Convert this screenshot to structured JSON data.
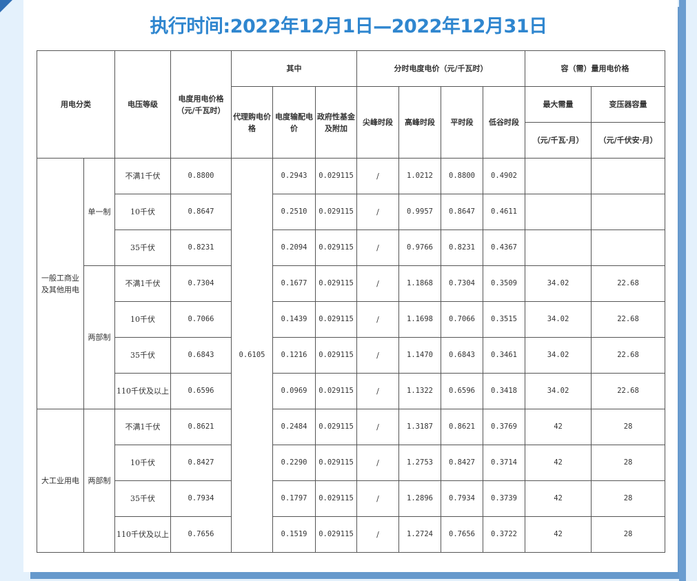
{
  "title": "执行时间:2022年12月1日—2022年12月31日",
  "headers": {
    "category": "用电分类",
    "voltage": "电压等级",
    "price": "电度用电价格\n（元/千瓦时）",
    "of_which": "其中",
    "agent_price": "代理购电价格",
    "transmission": "电度输配电价",
    "gov_fund": "政府性基金及附加",
    "tou": "分时电度电价（元/千瓦时）",
    "sharp_peak": "尖峰时段",
    "peak": "高峰时段",
    "flat": "平时段",
    "valley": "低谷时段",
    "capacity": "容（需）量用电价格",
    "max_demand": "最大需量",
    "max_demand_unit": "（元/千瓦·月）",
    "transformer": "变压器容量",
    "transformer_unit": "（元/千伏安·月）"
  },
  "agent_price": "0.6105",
  "groups": [
    {
      "category": "一般工商业及其他用电",
      "subgroups": [
        {
          "system": "单一制",
          "rows": [
            {
              "voltage": "不满1千伏",
              "price": "0.8800",
              "transmission": "0.2943",
              "gov_fund": "0.029115",
              "sharp_peak": "/",
              "peak": "1.0212",
              "flat": "0.8800",
              "valley": "0.4902",
              "max_demand": "",
              "transformer": ""
            },
            {
              "voltage": "10千伏",
              "price": "0.8647",
              "transmission": "0.2510",
              "gov_fund": "0.029115",
              "sharp_peak": "/",
              "peak": "0.9957",
              "flat": "0.8647",
              "valley": "0.4611",
              "max_demand": "",
              "transformer": ""
            },
            {
              "voltage": "35千伏",
              "price": "0.8231",
              "transmission": "0.2094",
              "gov_fund": "0.029115",
              "sharp_peak": "/",
              "peak": "0.9766",
              "flat": "0.8231",
              "valley": "0.4367",
              "max_demand": "",
              "transformer": ""
            }
          ]
        },
        {
          "system": "两部制",
          "rows": [
            {
              "voltage": "不满1千伏",
              "price": "0.7304",
              "transmission": "0.1677",
              "gov_fund": "0.029115",
              "sharp_peak": "/",
              "peak": "1.1868",
              "flat": "0.7304",
              "valley": "0.3509",
              "max_demand": "34.02",
              "transformer": "22.68"
            },
            {
              "voltage": "10千伏",
              "price": "0.7066",
              "transmission": "0.1439",
              "gov_fund": "0.029115",
              "sharp_peak": "/",
              "peak": "1.1698",
              "flat": "0.7066",
              "valley": "0.3515",
              "max_demand": "34.02",
              "transformer": "22.68"
            },
            {
              "voltage": "35千伏",
              "price": "0.6843",
              "transmission": "0.1216",
              "gov_fund": "0.029115",
              "sharp_peak": "/",
              "peak": "1.1470",
              "flat": "0.6843",
              "valley": "0.3461",
              "max_demand": "34.02",
              "transformer": "22.68"
            },
            {
              "voltage": "110千伏及以上",
              "price": "0.6596",
              "transmission": "0.0969",
              "gov_fund": "0.029115",
              "sharp_peak": "/",
              "peak": "1.1322",
              "flat": "0.6596",
              "valley": "0.3418",
              "max_demand": "34.02",
              "transformer": "22.68"
            }
          ]
        }
      ]
    },
    {
      "category": "大工业用电",
      "subgroups": [
        {
          "system": "两部制",
          "rows": [
            {
              "voltage": "不满1千伏",
              "price": "0.8621",
              "transmission": "0.2484",
              "gov_fund": "0.029115",
              "sharp_peak": "/",
              "peak": "1.3187",
              "flat": "0.8621",
              "valley": "0.3769",
              "max_demand": "42",
              "transformer": "28"
            },
            {
              "voltage": "10千伏",
              "price": "0.8427",
              "transmission": "0.2290",
              "gov_fund": "0.029115",
              "sharp_peak": "/",
              "peak": "1.2753",
              "flat": "0.8427",
              "valley": "0.3714",
              "max_demand": "42",
              "transformer": "28"
            },
            {
              "voltage": "35千伏",
              "price": "0.7934",
              "transmission": "0.1797",
              "gov_fund": "0.029115",
              "sharp_peak": "/",
              "peak": "1.2896",
              "flat": "0.7934",
              "valley": "0.3739",
              "max_demand": "42",
              "transformer": "28"
            },
            {
              "voltage": "110千伏及以上",
              "price": "0.7656",
              "transmission": "0.1519",
              "gov_fund": "0.029115",
              "sharp_peak": "/",
              "peak": "1.2724",
              "flat": "0.7656",
              "valley": "0.3722",
              "max_demand": "42",
              "transformer": "28"
            }
          ]
        }
      ]
    }
  ],
  "colors": {
    "title": "#2f86cf",
    "frame": "#6699cc",
    "background": "#e4f1fc"
  }
}
